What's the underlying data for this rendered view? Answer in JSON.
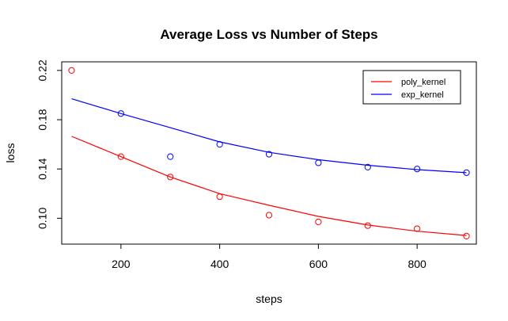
{
  "chart_data": {
    "type": "scatter",
    "title": "Average Loss vs Number of Steps",
    "xlabel": "steps",
    "ylabel": "loss",
    "xlim": [
      80,
      920
    ],
    "ylim": [
      0.079,
      0.227
    ],
    "xticks": [
      200,
      400,
      600,
      800
    ],
    "yticks": [
      0.1,
      0.14,
      0.18,
      0.22
    ],
    "ytick_labels": [
      "0.10",
      "0.14",
      "0.18",
      "0.22"
    ],
    "grid": false,
    "legend_position": "top-right",
    "series": [
      {
        "name": "poly_kernel",
        "color": "#ff0000",
        "points": {
          "x": [
            100,
            200,
            300,
            400,
            500,
            600,
            700,
            800,
            900
          ],
          "y": [
            0.22,
            0.15,
            0.1335,
            0.1175,
            0.1025,
            0.097,
            0.094,
            0.0915,
            0.0855
          ]
        },
        "fit": {
          "x": [
            100,
            200,
            300,
            400,
            500,
            600,
            700,
            800,
            900
          ],
          "y": [
            0.1665,
            0.15,
            0.1335,
            0.12,
            0.1105,
            0.1015,
            0.0945,
            0.0895,
            0.086
          ]
        }
      },
      {
        "name": "exp_kernel",
        "color": "#0000ff",
        "points": {
          "x": [
            200,
            300,
            400,
            500,
            600,
            700,
            800,
            900
          ],
          "y": [
            0.185,
            0.15,
            0.16,
            0.152,
            0.145,
            0.1415,
            0.14,
            0.137
          ]
        },
        "fit": {
          "x": [
            100,
            200,
            300,
            400,
            500,
            600,
            700,
            800,
            900
          ],
          "y": [
            0.197,
            0.185,
            0.1735,
            0.162,
            0.1535,
            0.1475,
            0.143,
            0.1395,
            0.137
          ]
        }
      }
    ]
  }
}
